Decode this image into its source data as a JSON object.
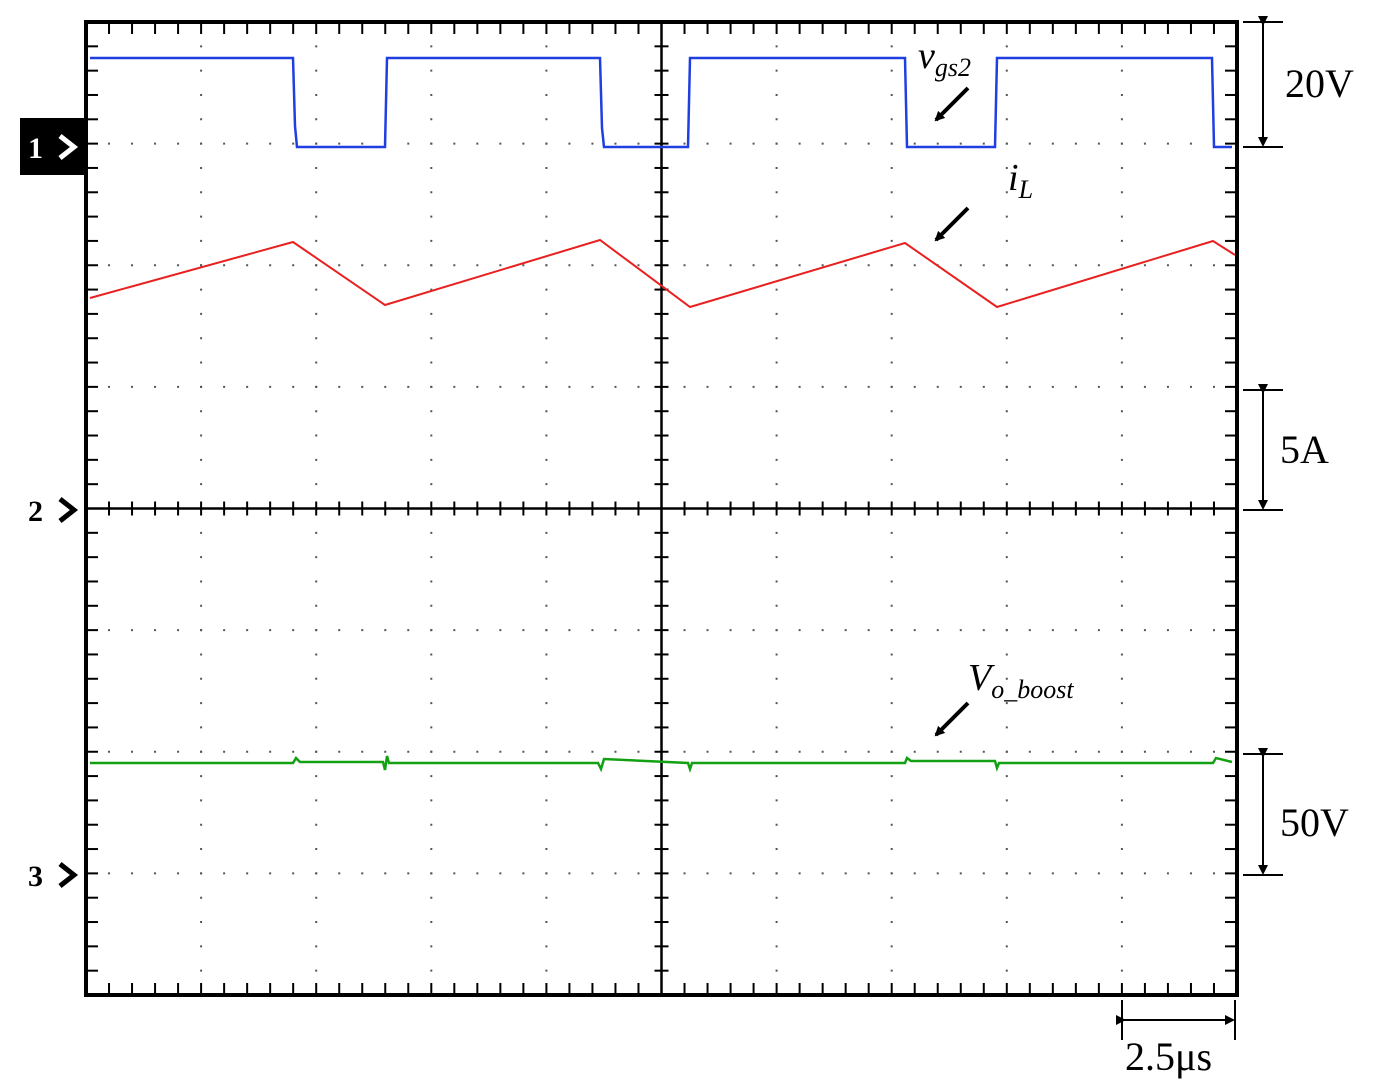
{
  "channels": [
    "1",
    "2",
    "3"
  ],
  "scales": {
    "ch1": "20V",
    "ch2": "5A",
    "ch3": "50V",
    "time": "2.5μs"
  },
  "traces": {
    "vgs2": {
      "main": "v",
      "sub": "gs2"
    },
    "iL": {
      "main": "i",
      "sub": "L"
    },
    "vo": {
      "main": "V",
      "sub": "o_boost"
    }
  }
}
